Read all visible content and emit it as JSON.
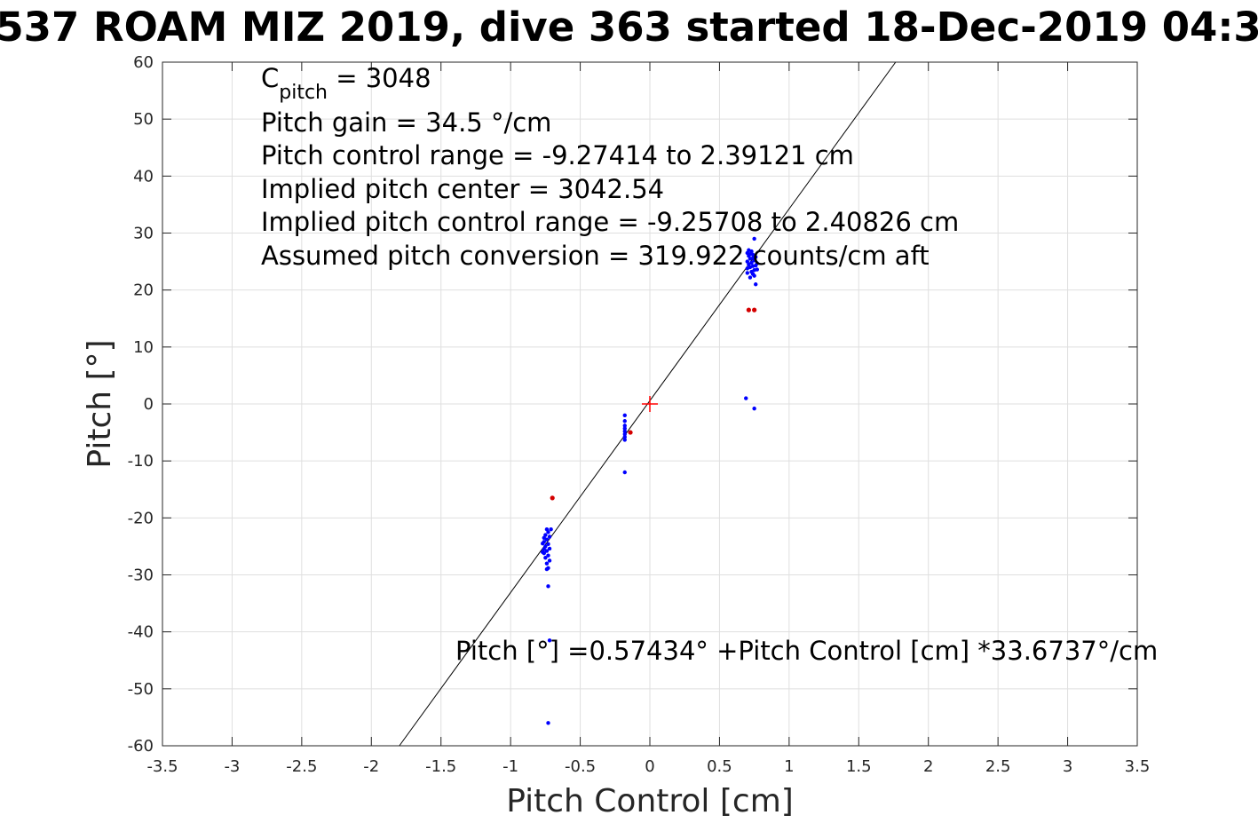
{
  "chart_data": {
    "type": "scatter",
    "title": "537 ROAM MIZ 2019, dive 363 started 18-Dec-2019 04:3",
    "xlabel": "Pitch Control [cm]",
    "ylabel": "Pitch [°]",
    "xlim": [
      -3.5,
      3.5
    ],
    "ylim": [
      -60,
      60
    ],
    "xticks": [
      "-3.5",
      "-3",
      "-2.5",
      "-2",
      "-1.5",
      "-1",
      "-0.5",
      "0",
      "0.5",
      "1",
      "1.5",
      "2",
      "2.5",
      "3",
      "3.5"
    ],
    "yticks": [
      "-60",
      "-50",
      "-40",
      "-30",
      "-20",
      "-10",
      "0",
      "10",
      "20",
      "30",
      "40",
      "50",
      "60"
    ],
    "grid": true,
    "colors": {
      "points": "#0000ff",
      "flagged": "#d40000",
      "fit": "#000000",
      "center_marker": "#ff0000"
    },
    "annotations": {
      "cpitch_prefix": "C",
      "cpitch_sub": "pitch",
      "cpitch_suffix": " = 3048",
      "lines": [
        "Pitch gain = 34.5 °/cm",
        "Pitch control range = -9.27414 to 2.39121 cm",
        "Implied pitch center = 3042.54",
        "Implied pitch control range = -9.25708 to 2.40826 cm",
        "Assumed pitch conversion = 319.922 counts/cm aft"
      ],
      "fit_equation": "Pitch [°] =0.57434° +Pitch Control [cm] *33.6737°/cm"
    },
    "fit_line": {
      "intercept": 0.57434,
      "slope": 33.6737
    },
    "center_marker": {
      "x": 0,
      "y": 0
    },
    "series": [
      {
        "values": [
          [
            0.7,
            26.5
          ],
          [
            0.71,
            26.0
          ],
          [
            0.72,
            25.5
          ],
          [
            0.7,
            25.0
          ],
          [
            0.73,
            24.8
          ],
          [
            0.71,
            24.5
          ],
          [
            0.74,
            24.2
          ],
          [
            0.72,
            24.0
          ],
          [
            0.7,
            23.8
          ],
          [
            0.75,
            23.5
          ],
          [
            0.73,
            23.2
          ],
          [
            0.74,
            22.8
          ],
          [
            0.75,
            22.5
          ],
          [
            0.72,
            22.2
          ],
          [
            0.76,
            21.0
          ],
          [
            0.75,
            29.0
          ],
          [
            0.71,
            27.0
          ],
          [
            0.73,
            26.8
          ],
          [
            0.74,
            26.2
          ],
          [
            0.76,
            25.8
          ],
          [
            0.75,
            25.2
          ],
          [
            0.77,
            24.7
          ],
          [
            0.76,
            24.3
          ],
          [
            0.77,
            23.6
          ],
          [
            0.7,
            23.0
          ],
          [
            0.72,
            26.3
          ],
          [
            0.74,
            25.6
          ],
          [
            0.69,
            1.0
          ],
          [
            0.75,
            -0.8
          ],
          [
            -0.18,
            -2.0
          ],
          [
            -0.18,
            -3.0
          ],
          [
            -0.18,
            -3.8
          ],
          [
            -0.18,
            -4.3
          ],
          [
            -0.18,
            -4.8
          ],
          [
            -0.18,
            -5.3
          ],
          [
            -0.18,
            -5.8
          ],
          [
            -0.18,
            -6.3
          ],
          [
            -0.18,
            -12.0
          ],
          [
            -0.74,
            -22.0
          ],
          [
            -0.73,
            -22.5
          ],
          [
            -0.75,
            -23.0
          ],
          [
            -0.72,
            -23.3
          ],
          [
            -0.74,
            -23.8
          ],
          [
            -0.76,
            -24.2
          ],
          [
            -0.73,
            -24.6
          ],
          [
            -0.75,
            -25.0
          ],
          [
            -0.72,
            -25.4
          ],
          [
            -0.74,
            -25.8
          ],
          [
            -0.76,
            -26.2
          ],
          [
            -0.73,
            -26.6
          ],
          [
            -0.75,
            -27.0
          ],
          [
            -0.72,
            -27.5
          ],
          [
            -0.74,
            -28.0
          ],
          [
            -0.73,
            -28.8
          ],
          [
            -0.74,
            -29.0
          ],
          [
            -0.73,
            -32.0
          ],
          [
            -0.72,
            -41.5
          ],
          [
            -0.73,
            -56.0
          ],
          [
            -0.71,
            -22.0
          ],
          [
            -0.76,
            -23.5
          ],
          [
            -0.77,
            -24.5
          ],
          [
            -0.76,
            -25.5
          ],
          [
            -0.77,
            -26.0
          ]
        ]
      },
      {
        "values": [
          [
            0.71,
            16.5
          ],
          [
            0.75,
            16.5
          ],
          [
            -0.7,
            -16.5
          ],
          [
            -0.14,
            -5.0
          ]
        ]
      }
    ]
  }
}
